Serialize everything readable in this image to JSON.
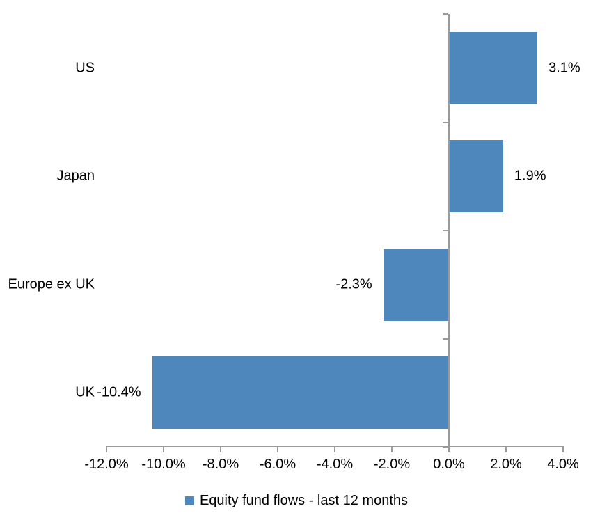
{
  "chart_data": {
    "type": "bar",
    "orientation": "horizontal",
    "title": "",
    "categories": [
      "US",
      "Japan",
      "Europe ex UK",
      "UK"
    ],
    "series": [
      {
        "name": "Equity fund flows - last 12 months",
        "values": [
          3.1,
          1.9,
          -2.3,
          -10.4
        ],
        "value_labels": [
          "3.1%",
          "1.9%",
          "-2.3%",
          "-10.4%"
        ]
      }
    ],
    "xlabel": "",
    "ylabel": "",
    "xlim": [
      -12.0,
      4.0
    ],
    "x_ticks": [
      {
        "value": -12,
        "label": "-12.0%"
      },
      {
        "value": -10,
        "label": "-10.0%"
      },
      {
        "value": -8,
        "label": "-8.0%"
      },
      {
        "value": -6,
        "label": "-6.0%"
      },
      {
        "value": -4,
        "label": "-4.0%"
      },
      {
        "value": -2,
        "label": "-2.0%"
      },
      {
        "value": 0,
        "label": "0.0%"
      },
      {
        "value": 2,
        "label": "2.0%"
      },
      {
        "value": 4,
        "label": "4.0%"
      }
    ],
    "grid": false,
    "legend_position": "bottom",
    "data_labels": "outside-end"
  },
  "legend": {
    "label": "Equity fund flows - last 12 months"
  },
  "colors": {
    "bar": "#4d87bc",
    "axis": "#9a9a9a",
    "text": "#000000",
    "background": "#ffffff"
  }
}
